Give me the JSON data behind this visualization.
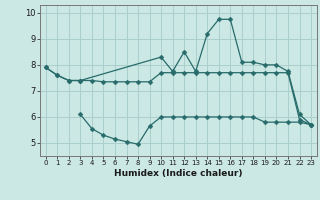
{
  "title": "",
  "xlabel": "Humidex (Indice chaleur)",
  "bg_color": "#cce8e5",
  "line_color": "#276b6b",
  "grid_color": "#aacfcc",
  "xlim": [
    -0.5,
    23.5
  ],
  "ylim": [
    4.5,
    10.3
  ],
  "yticks": [
    5,
    6,
    7,
    8,
    9,
    10
  ],
  "xticks": [
    0,
    1,
    2,
    3,
    4,
    5,
    6,
    7,
    8,
    9,
    10,
    11,
    12,
    13,
    14,
    15,
    16,
    17,
    18,
    19,
    20,
    21,
    22,
    23
  ],
  "series1_x": [
    0,
    1,
    2,
    3,
    10,
    11,
    12,
    13,
    14,
    15,
    16,
    17,
    18,
    19,
    20,
    21,
    22,
    23
  ],
  "series1_y": [
    7.9,
    7.6,
    7.4,
    7.4,
    8.3,
    7.75,
    8.5,
    7.75,
    9.2,
    9.75,
    9.75,
    8.1,
    8.1,
    8.0,
    8.0,
    7.75,
    6.1,
    5.7
  ],
  "series2_x": [
    0,
    1,
    2,
    3,
    4,
    5,
    6,
    7,
    8,
    9,
    10,
    11,
    12,
    13,
    14,
    15,
    16,
    17,
    18,
    19,
    20,
    21,
    22,
    23
  ],
  "series2_y": [
    7.9,
    7.6,
    7.4,
    7.4,
    7.4,
    7.35,
    7.35,
    7.35,
    7.35,
    7.35,
    7.7,
    7.7,
    7.7,
    7.7,
    7.7,
    7.7,
    7.7,
    7.7,
    7.7,
    7.7,
    7.7,
    7.7,
    5.9,
    5.7
  ],
  "series3_x": [
    3,
    4,
    5,
    6,
    7,
    8,
    9,
    10,
    11,
    12,
    13,
    14,
    15,
    16,
    17,
    18,
    19,
    20,
    21,
    22,
    23
  ],
  "series3_y": [
    6.1,
    5.55,
    5.3,
    5.15,
    5.05,
    4.95,
    5.65,
    6.0,
    6.0,
    6.0,
    6.0,
    6.0,
    6.0,
    6.0,
    6.0,
    6.0,
    5.8,
    5.8,
    5.8,
    5.8,
    5.7
  ]
}
